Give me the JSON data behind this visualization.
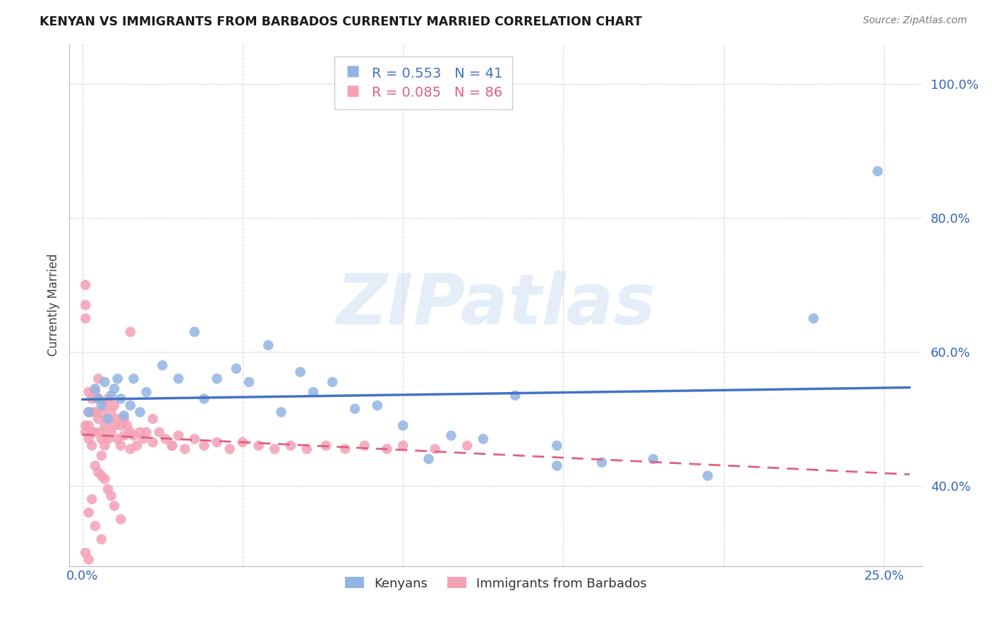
{
  "title": "KENYAN VS IMMIGRANTS FROM BARBADOS CURRENTLY MARRIED CORRELATION CHART",
  "source": "Source: ZipAtlas.com",
  "ylabel_label": "Currently Married",
  "kenyan_R": 0.553,
  "kenyan_N": 41,
  "barbados_R": 0.085,
  "barbados_N": 86,
  "kenyan_color": "#92b4e3",
  "barbados_color": "#f4a0b5",
  "kenyan_line_color": "#4472c4",
  "barbados_line_color": "#e06080",
  "background_color": "#ffffff",
  "grid_color": "#d8d8d8",
  "xlim": [
    -0.004,
    0.262
  ],
  "ylim": [
    0.28,
    1.06
  ],
  "x_ticks": [
    0.0,
    0.05,
    0.1,
    0.15,
    0.2,
    0.25
  ],
  "x_tick_labels": [
    "0.0%",
    "",
    "",
    "",
    "",
    "25.0%"
  ],
  "y_ticks": [
    0.4,
    0.6,
    0.8,
    1.0
  ],
  "y_tick_labels": [
    "40.0%",
    "60.0%",
    "80.0%",
    "100.0%"
  ],
  "kenyan_x": [
    0.002,
    0.004,
    0.005,
    0.006,
    0.007,
    0.008,
    0.009,
    0.01,
    0.011,
    0.012,
    0.013,
    0.015,
    0.016,
    0.018,
    0.02,
    0.025,
    0.03,
    0.035,
    0.038,
    0.042,
    0.048,
    0.052,
    0.058,
    0.062,
    0.068,
    0.072,
    0.078,
    0.085,
    0.092,
    0.1,
    0.108,
    0.115,
    0.125,
    0.135,
    0.148,
    0.162,
    0.178,
    0.195,
    0.148,
    0.228,
    0.248
  ],
  "kenyan_y": [
    0.51,
    0.545,
    0.53,
    0.52,
    0.555,
    0.5,
    0.535,
    0.545,
    0.56,
    0.53,
    0.505,
    0.52,
    0.56,
    0.51,
    0.54,
    0.58,
    0.56,
    0.63,
    0.53,
    0.56,
    0.575,
    0.555,
    0.61,
    0.51,
    0.57,
    0.54,
    0.555,
    0.515,
    0.52,
    0.49,
    0.44,
    0.475,
    0.47,
    0.535,
    0.46,
    0.435,
    0.44,
    0.415,
    0.43,
    0.65,
    0.87
  ],
  "barbados_x": [
    0.001,
    0.001,
    0.001,
    0.001,
    0.001,
    0.002,
    0.002,
    0.002,
    0.002,
    0.003,
    0.003,
    0.003,
    0.003,
    0.004,
    0.004,
    0.004,
    0.005,
    0.005,
    0.005,
    0.006,
    0.006,
    0.006,
    0.006,
    0.007,
    0.007,
    0.007,
    0.008,
    0.008,
    0.008,
    0.009,
    0.009,
    0.01,
    0.01,
    0.011,
    0.011,
    0.012,
    0.012,
    0.013,
    0.013,
    0.014,
    0.015,
    0.015,
    0.016,
    0.017,
    0.018,
    0.019,
    0.02,
    0.022,
    0.024,
    0.026,
    0.028,
    0.03,
    0.032,
    0.035,
    0.038,
    0.042,
    0.046,
    0.05,
    0.055,
    0.06,
    0.065,
    0.07,
    0.076,
    0.082,
    0.088,
    0.095,
    0.1,
    0.11,
    0.12,
    0.015,
    0.022,
    0.028,
    0.004,
    0.005,
    0.006,
    0.007,
    0.008,
    0.009,
    0.01,
    0.012,
    0.003,
    0.002,
    0.004,
    0.006,
    0.001,
    0.002
  ],
  "barbados_y": [
    0.7,
    0.67,
    0.65,
    0.49,
    0.48,
    0.54,
    0.51,
    0.49,
    0.47,
    0.53,
    0.51,
    0.48,
    0.46,
    0.54,
    0.51,
    0.48,
    0.56,
    0.53,
    0.5,
    0.48,
    0.51,
    0.47,
    0.445,
    0.52,
    0.49,
    0.46,
    0.53,
    0.5,
    0.47,
    0.51,
    0.48,
    0.52,
    0.49,
    0.5,
    0.47,
    0.49,
    0.46,
    0.5,
    0.475,
    0.49,
    0.48,
    0.455,
    0.475,
    0.46,
    0.48,
    0.47,
    0.48,
    0.465,
    0.48,
    0.47,
    0.46,
    0.475,
    0.455,
    0.47,
    0.46,
    0.465,
    0.455,
    0.465,
    0.46,
    0.455,
    0.46,
    0.455,
    0.46,
    0.455,
    0.46,
    0.455,
    0.46,
    0.455,
    0.46,
    0.63,
    0.5,
    0.46,
    0.43,
    0.42,
    0.415,
    0.41,
    0.395,
    0.385,
    0.37,
    0.35,
    0.38,
    0.36,
    0.34,
    0.32,
    0.3,
    0.29
  ]
}
